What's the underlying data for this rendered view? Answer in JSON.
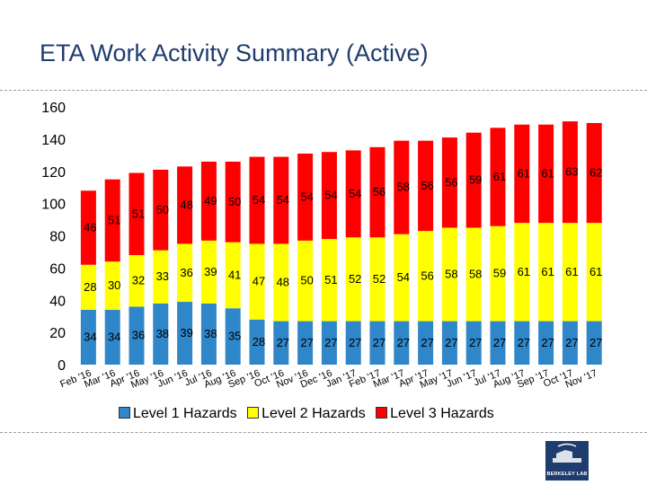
{
  "page": {
    "title": "ETA Work Activity Summary (Active)",
    "logo_text": "BERKELEY LAB"
  },
  "colors": {
    "level1": "#2f86c9",
    "level2": "#ffff00",
    "level3": "#ff0000",
    "title": "#1f3c6e"
  },
  "chart_data": {
    "type": "bar",
    "stacked": true,
    "title": "",
    "xlabel": "",
    "ylabel": "",
    "ylim": [
      0,
      160
    ],
    "yticks": [
      0,
      20,
      40,
      60,
      80,
      100,
      120,
      140,
      160
    ],
    "grid": false,
    "legend_position": "bottom",
    "categories": [
      "Feb '16",
      "Mar '16",
      "Apr '16",
      "May '16",
      "Jun '16",
      "Jul '16",
      "Aug '16",
      "Sep '16",
      "Oct '16",
      "Nov '16",
      "Dec '16",
      "Jan '17",
      "Feb '17",
      "Mar '17",
      "Apr '17",
      "May '17",
      "Jun '17",
      "Jul '17",
      "Aug '17",
      "Sep '17",
      "Oct '17",
      "Nov '17"
    ],
    "series": [
      {
        "name": "Level 1 Hazards",
        "values": [
          34,
          34,
          36,
          38,
          39,
          38,
          35,
          28,
          27,
          27,
          27,
          27,
          27,
          27,
          27,
          27,
          27,
          27,
          27,
          27,
          27,
          27
        ]
      },
      {
        "name": "Level 2 Hazards",
        "values": [
          28,
          30,
          32,
          33,
          36,
          39,
          41,
          47,
          48,
          50,
          51,
          52,
          52,
          54,
          56,
          58,
          58,
          59,
          61,
          61,
          61,
          61
        ]
      },
      {
        "name": "Level 3 Hazards",
        "values": [
          46,
          51,
          51,
          50,
          48,
          49,
          50,
          54,
          54,
          54,
          54,
          54,
          56,
          58,
          56,
          56,
          59,
          61,
          61,
          61,
          63,
          62
        ]
      }
    ]
  }
}
